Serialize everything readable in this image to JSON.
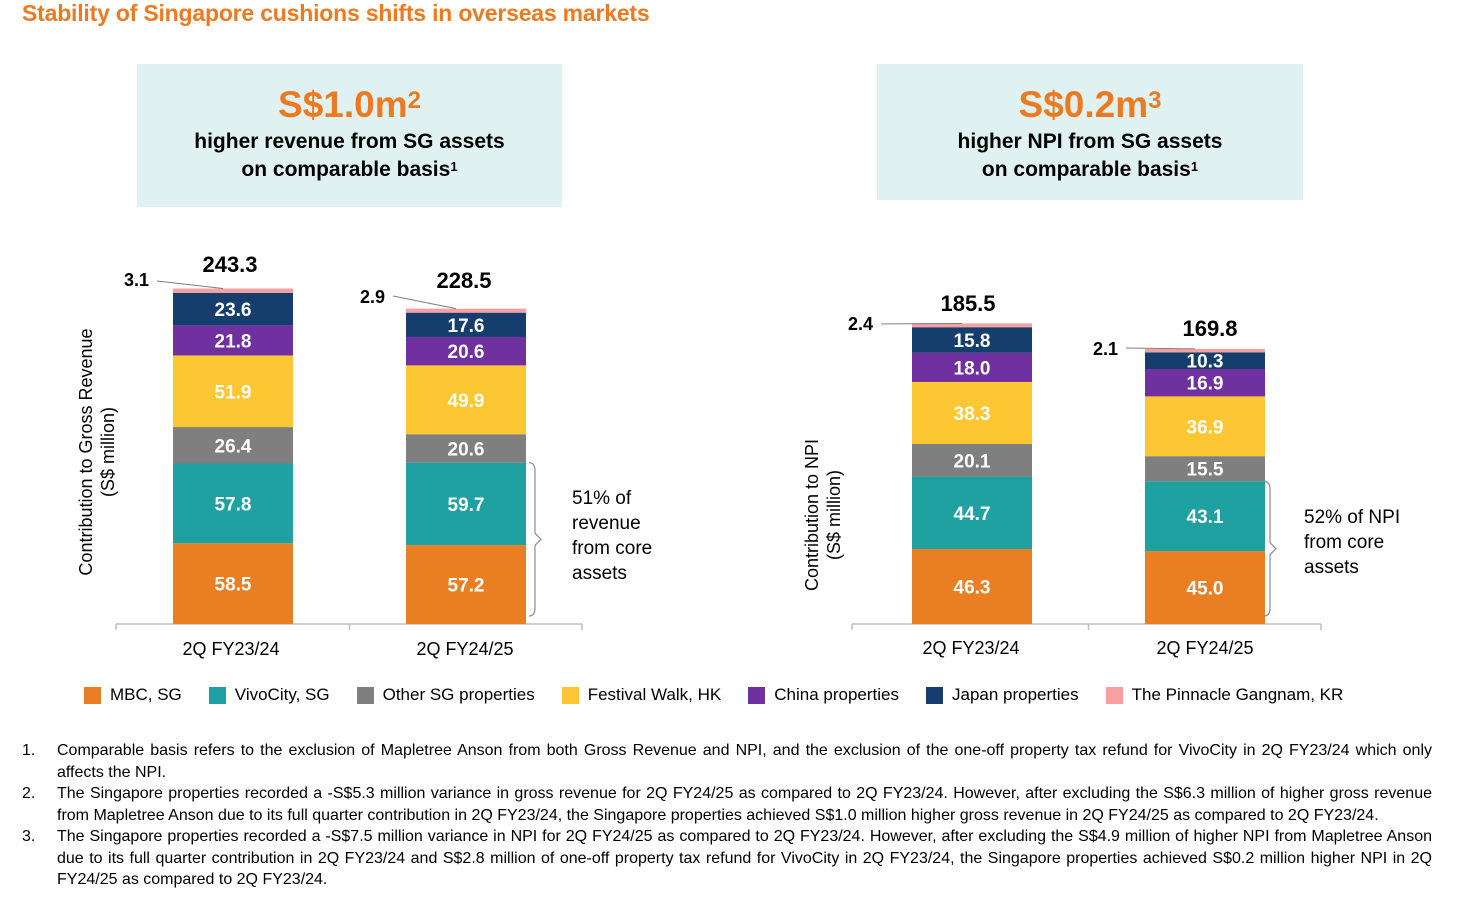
{
  "title": "Stability of Singapore cushions shifts in overseas markets",
  "callouts": [
    {
      "amount": "S$1.0m",
      "amount_sup": "2",
      "line1": "higher revenue from SG assets",
      "line2": "on comparable basis",
      "line2_sup": "1"
    },
    {
      "amount": "S$0.2m",
      "amount_sup": "3",
      "line1": "higher NPI from SG assets",
      "line2": "on comparable basis",
      "line2_sup": "1"
    }
  ],
  "colors": {
    "MBC, SG": "#ea7e23",
    "VivoCity, SG": "#20a1a1",
    "Other SG properties": "#7f7f7f",
    "Festival Walk, HK": "#fdc633",
    "China properties": "#7030a0",
    "Japan properties": "#153e6c",
    "The Pinnacle Gangnam, KR": "#f7a0a2"
  },
  "legend": [
    "MBC, SG",
    "VivoCity, SG",
    "Other SG properties",
    "Festival Walk, HK",
    "China properties",
    "Japan properties",
    "The Pinnacle Gangnam, KR"
  ],
  "chart_data": [
    {
      "type": "bar",
      "stacked": true,
      "ylabel_line1": "Contribution to Gross Revenue",
      "ylabel_line2": "(S$ million)",
      "categories": [
        "2Q FY23/24",
        "2Q FY24/25"
      ],
      "series": [
        {
          "name": "MBC, SG",
          "values": [
            58.5,
            57.2
          ]
        },
        {
          "name": "VivoCity, SG",
          "values": [
            57.8,
            59.7
          ]
        },
        {
          "name": "Other SG properties",
          "values": [
            26.4,
            20.6
          ]
        },
        {
          "name": "Festival Walk, HK",
          "values": [
            51.9,
            49.9
          ]
        },
        {
          "name": "China properties",
          "values": [
            21.8,
            20.6
          ]
        },
        {
          "name": "Japan properties",
          "values": [
            23.6,
            17.6
          ]
        },
        {
          "name": "The Pinnacle Gangnam, KR",
          "values": [
            3.1,
            2.9
          ]
        }
      ],
      "totals": [
        "243.3",
        "228.5"
      ],
      "bracket_note": [
        "51% of",
        "revenue",
        "from core",
        "assets"
      ]
    },
    {
      "type": "bar",
      "stacked": true,
      "ylabel_line1": "Contribution to NPI",
      "ylabel_line2": "(S$ million)",
      "categories": [
        "2Q FY23/24",
        "2Q FY24/25"
      ],
      "series": [
        {
          "name": "MBC, SG",
          "values": [
            46.3,
            45.0
          ]
        },
        {
          "name": "VivoCity, SG",
          "values": [
            44.7,
            43.1
          ]
        },
        {
          "name": "Other SG properties",
          "values": [
            20.1,
            15.5
          ]
        },
        {
          "name": "Festival Walk, HK",
          "values": [
            38.3,
            36.9
          ]
        },
        {
          "name": "China properties",
          "values": [
            18.0,
            16.9
          ]
        },
        {
          "name": "Japan properties",
          "values": [
            15.8,
            10.3
          ]
        },
        {
          "name": "The Pinnacle Gangnam, KR",
          "values": [
            2.4,
            2.1
          ]
        }
      ],
      "totals": [
        "185.5",
        "169.8"
      ],
      "bracket_note": [
        "52% of NPI",
        "from core",
        "assets"
      ]
    }
  ],
  "footnotes": [
    {
      "num": "1.",
      "text": "Comparable basis refers to the exclusion of Mapletree Anson from both Gross Revenue and NPI, and the exclusion of the one-off property tax refund for VivoCity in 2Q FY23/24 which only affects the NPI."
    },
    {
      "num": "2.",
      "text": "The Singapore properties recorded a -S$5.3 million variance in gross revenue for 2Q FY24/25 as compared to 2Q FY23/24. However, after excluding the S$6.3 million of higher gross revenue from Mapletree Anson due to its full quarter contribution in 2Q FY23/24, the Singapore properties achieved S$1.0 million higher gross revenue in 2Q FY24/25 as compared to 2Q FY23/24."
    },
    {
      "num": "3.",
      "text": "The Singapore properties recorded a -S$7.5 million variance in NPI for 2Q FY24/25 as compared to 2Q FY23/24. However, after excluding the S$4.9 million of higher NPI from Mapletree Anson due to its full quarter contribution in 2Q FY23/24 and S$2.8 million of one-off property tax refund for VivoCity in 2Q FY23/24, the Singapore properties achieved S$0.2 million higher NPI in 2Q FY24/25 as compared to 2Q FY23/24."
    }
  ]
}
